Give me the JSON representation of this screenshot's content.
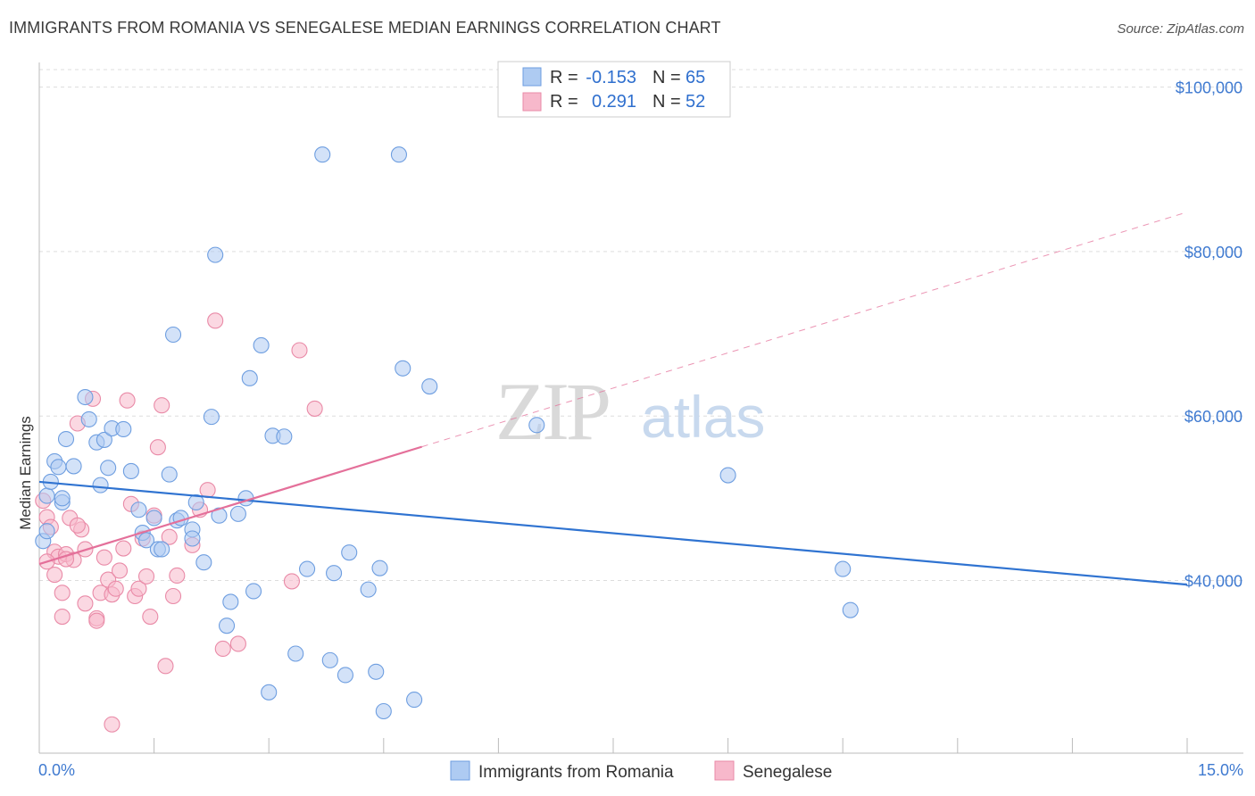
{
  "title": "IMMIGRANTS FROM ROMANIA VS SENEGALESE MEDIAN EARNINGS CORRELATION CHART",
  "source": "Source: ZipAtlas.com",
  "watermark": {
    "zip": "ZIP",
    "atlas": "atlas"
  },
  "colors": {
    "blue_fill": "#aecbf2",
    "blue_stroke": "#6e9ee0",
    "blue_line": "#2f73d1",
    "pink_fill": "#f7b8cb",
    "pink_stroke": "#e98aa7",
    "pink_line": "#e4709a",
    "tick_text": "#3f7ad0",
    "grid": "#dddddd"
  },
  "legend": {
    "r_label": "R =",
    "n_label": "N =",
    "rows": [
      {
        "r": "-0.153",
        "n": "65"
      },
      {
        "r": "0.291",
        "n": "52"
      }
    ]
  },
  "chart_data": {
    "type": "scatter",
    "xlabel": "",
    "ylabel": "Median Earnings",
    "xlim": [
      0,
      15
    ],
    "ylim": [
      19000,
      103000
    ],
    "x_tick_labels": [
      "0.0%",
      "15.0%"
    ],
    "y_ticks": [
      {
        "value": 40000,
        "label": "$40,000"
      },
      {
        "value": 60000,
        "label": "$60,000"
      },
      {
        "value": 80000,
        "label": "$80,000"
      },
      {
        "value": 100000,
        "label": "$100,000"
      }
    ],
    "grid": true,
    "legend_position": "top-center",
    "series": [
      {
        "name": "Immigrants from Romania",
        "r": -0.153,
        "n": 65,
        "trend": {
          "x0": 0.0,
          "y0": 52000,
          "x1": 15.0,
          "y1": 39500,
          "solid_until": 15.0
        },
        "points": [
          [
            0.1,
            50300
          ],
          [
            0.15,
            52000
          ],
          [
            0.2,
            54500
          ],
          [
            0.25,
            53800
          ],
          [
            0.3,
            49500
          ],
          [
            0.35,
            57200
          ],
          [
            0.45,
            53900
          ],
          [
            0.6,
            62300
          ],
          [
            0.65,
            59600
          ],
          [
            0.75,
            56800
          ],
          [
            0.8,
            51600
          ],
          [
            0.85,
            57100
          ],
          [
            0.9,
            53700
          ],
          [
            0.95,
            58500
          ],
          [
            1.1,
            58400
          ],
          [
            1.2,
            53300
          ],
          [
            1.3,
            48600
          ],
          [
            1.35,
            45800
          ],
          [
            1.4,
            44900
          ],
          [
            1.5,
            47600
          ],
          [
            1.55,
            43800
          ],
          [
            1.6,
            43800
          ],
          [
            1.7,
            52900
          ],
          [
            1.75,
            69900
          ],
          [
            1.8,
            47300
          ],
          [
            1.85,
            47600
          ],
          [
            2.0,
            46200
          ],
          [
            2.0,
            45100
          ],
          [
            2.05,
            49500
          ],
          [
            2.15,
            42200
          ],
          [
            2.25,
            59900
          ],
          [
            2.3,
            79600
          ],
          [
            2.35,
            47900
          ],
          [
            2.45,
            34500
          ],
          [
            2.5,
            37400
          ],
          [
            2.6,
            48100
          ],
          [
            2.7,
            50000
          ],
          [
            2.75,
            64600
          ],
          [
            2.8,
            38700
          ],
          [
            2.9,
            68600
          ],
          [
            3.0,
            26400
          ],
          [
            3.05,
            57600
          ],
          [
            3.2,
            57500
          ],
          [
            3.35,
            31100
          ],
          [
            3.5,
            41400
          ],
          [
            3.7,
            91800
          ],
          [
            3.8,
            30300
          ],
          [
            3.85,
            40900
          ],
          [
            4.0,
            28500
          ],
          [
            4.05,
            43400
          ],
          [
            4.3,
            38900
          ],
          [
            4.4,
            28900
          ],
          [
            4.45,
            41500
          ],
          [
            4.5,
            24100
          ],
          [
            4.7,
            91800
          ],
          [
            4.75,
            65800
          ],
          [
            4.9,
            25500
          ],
          [
            5.1,
            63600
          ],
          [
            6.5,
            58900
          ],
          [
            9.0,
            52800
          ],
          [
            10.5,
            41400
          ],
          [
            10.6,
            36400
          ],
          [
            0.05,
            44800
          ],
          [
            0.1,
            46000
          ],
          [
            0.3,
            50000
          ]
        ]
      },
      {
        "name": "Senegalese",
        "r": 0.291,
        "n": 52,
        "trend": {
          "x0": 0.0,
          "y0": 42000,
          "x1": 15.0,
          "y1": 84800,
          "solid_until": 5.0
        },
        "points": [
          [
            0.05,
            49700
          ],
          [
            0.1,
            47700
          ],
          [
            0.15,
            46500
          ],
          [
            0.2,
            43500
          ],
          [
            0.2,
            40700
          ],
          [
            0.25,
            42900
          ],
          [
            0.3,
            38500
          ],
          [
            0.3,
            35600
          ],
          [
            0.35,
            43200
          ],
          [
            0.4,
            47600
          ],
          [
            0.45,
            42500
          ],
          [
            0.5,
            59100
          ],
          [
            0.55,
            46200
          ],
          [
            0.6,
            43800
          ],
          [
            0.6,
            37200
          ],
          [
            0.7,
            62100
          ],
          [
            0.75,
            35400
          ],
          [
            0.75,
            35100
          ],
          [
            0.8,
            38500
          ],
          [
            0.85,
            42800
          ],
          [
            0.9,
            40100
          ],
          [
            0.95,
            38300
          ],
          [
            1.0,
            39000
          ],
          [
            1.05,
            41200
          ],
          [
            1.1,
            43900
          ],
          [
            1.15,
            61900
          ],
          [
            1.2,
            49300
          ],
          [
            1.25,
            38100
          ],
          [
            1.3,
            39000
          ],
          [
            1.35,
            45100
          ],
          [
            1.4,
            40500
          ],
          [
            1.45,
            35600
          ],
          [
            1.5,
            47900
          ],
          [
            1.55,
            56200
          ],
          [
            1.6,
            61300
          ],
          [
            1.65,
            29600
          ],
          [
            1.7,
            45300
          ],
          [
            1.75,
            38100
          ],
          [
            1.8,
            40600
          ],
          [
            2.0,
            44300
          ],
          [
            2.1,
            48600
          ],
          [
            2.2,
            51000
          ],
          [
            2.3,
            71600
          ],
          [
            2.4,
            31700
          ],
          [
            2.6,
            32300
          ],
          [
            3.3,
            39900
          ],
          [
            3.4,
            68000
          ],
          [
            3.6,
            60900
          ],
          [
            0.1,
            42300
          ],
          [
            0.95,
            22500
          ],
          [
            0.35,
            42600
          ],
          [
            0.5,
            46700
          ]
        ]
      }
    ]
  },
  "bottom_legend": [
    "Immigrants from Romania",
    "Senegalese"
  ]
}
